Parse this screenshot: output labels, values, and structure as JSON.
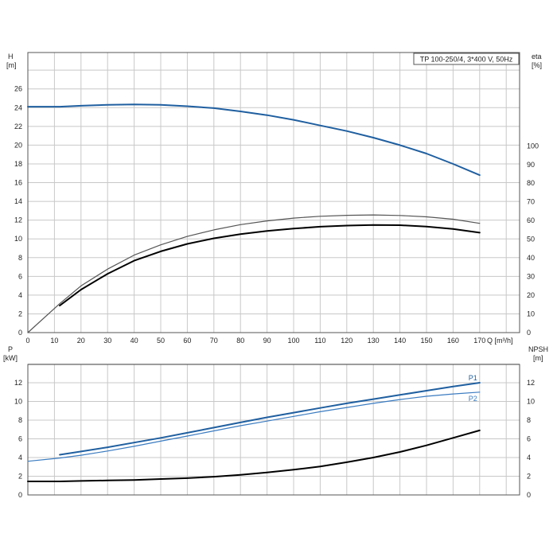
{
  "colors": {
    "blue": "#1f5fa0",
    "light_blue": "#3a7bc0",
    "black": "#000000",
    "grey_curve": "#555555",
    "grid": "#c8c8c8",
    "frame": "#555555"
  },
  "chart_data": [
    {
      "type": "line",
      "title": "TP 100-250/4, 3*400 V, 50Hz",
      "xlabel": "Q [m³/h]",
      "left_axis": {
        "label_line1": "H",
        "label_line2": "[m]",
        "ylim": [
          0,
          28
        ],
        "ticks": [
          0,
          2,
          4,
          6,
          8,
          10,
          12,
          14,
          16,
          18,
          20,
          22,
          24,
          26
        ]
      },
      "right_axis": {
        "label_line1": "eta",
        "label_line2": "[%]",
        "ylim": [
          0,
          100
        ],
        "ticks": [
          0,
          10,
          20,
          30,
          40,
          50,
          60,
          70,
          80,
          90,
          100
        ]
      },
      "x_ticks": [
        0,
        10,
        20,
        30,
        40,
        50,
        60,
        70,
        80,
        90,
        100,
        110,
        120,
        130,
        140,
        150,
        160,
        170
      ],
      "xlim": [
        0,
        185
      ],
      "grid": true,
      "series": [
        {
          "axis": "left",
          "color": "blue",
          "width": 2,
          "x": [
            0,
            12,
            20,
            30,
            40,
            50,
            60,
            70,
            80,
            90,
            100,
            110,
            120,
            130,
            140,
            150,
            160,
            170
          ],
          "y": [
            24.1,
            24.1,
            24.2,
            24.3,
            24.35,
            24.3,
            24.15,
            23.95,
            23.6,
            23.2,
            22.7,
            22.1,
            21.5,
            20.8,
            20.0,
            19.1,
            18.0,
            16.8
          ]
        },
        {
          "axis": "right",
          "color": "grey_curve",
          "width": 1.2,
          "x": [
            0,
            12,
            20,
            30,
            40,
            50,
            60,
            70,
            80,
            90,
            100,
            110,
            120,
            130,
            140,
            150,
            160,
            170
          ],
          "y": [
            0,
            15.5,
            25,
            34,
            41.5,
            47,
            51.5,
            55,
            57.8,
            59.8,
            61.3,
            62.3,
            62.8,
            63,
            62.7,
            62,
            60.7,
            58.5
          ]
        },
        {
          "axis": "right",
          "color": "black",
          "width": 2,
          "x": [
            12,
            20,
            30,
            40,
            50,
            60,
            70,
            80,
            90,
            100,
            110,
            120,
            130,
            140,
            150,
            160,
            170
          ],
          "y": [
            14.5,
            23,
            31.5,
            38.5,
            43.5,
            47.5,
            50.5,
            52.7,
            54.4,
            55.7,
            56.7,
            57.3,
            57.6,
            57.5,
            56.8,
            55.5,
            53.5
          ]
        }
      ]
    },
    {
      "type": "line",
      "xlim": [
        0,
        185
      ],
      "left_axis": {
        "label_line1": "P",
        "label_line2": "[kW]",
        "ylim": [
          0,
          14
        ],
        "ticks": [
          0,
          2,
          4,
          6,
          8,
          10,
          12
        ]
      },
      "right_axis": {
        "label_line1": "NPSH",
        "label_line2": "[m]",
        "ylim": [
          0,
          14
        ],
        "ticks": [
          0,
          2,
          4,
          6,
          8,
          10,
          12
        ]
      },
      "grid": true,
      "series": [
        {
          "name": "P1",
          "axis": "left",
          "color": "blue",
          "width": 2,
          "x": [
            12,
            20,
            30,
            40,
            50,
            60,
            70,
            80,
            90,
            100,
            110,
            120,
            130,
            140,
            150,
            160,
            170
          ],
          "y": [
            4.3,
            4.65,
            5.1,
            5.6,
            6.1,
            6.65,
            7.2,
            7.75,
            8.3,
            8.8,
            9.3,
            9.8,
            10.25,
            10.7,
            11.15,
            11.6,
            12.0
          ]
        },
        {
          "name": "P2",
          "axis": "left",
          "color": "light_blue",
          "width": 1.2,
          "x": [
            0,
            12,
            20,
            30,
            40,
            50,
            60,
            70,
            80,
            90,
            100,
            110,
            120,
            130,
            140,
            150,
            160,
            170
          ],
          "y": [
            3.6,
            3.95,
            4.25,
            4.7,
            5.2,
            5.75,
            6.3,
            6.85,
            7.4,
            7.9,
            8.4,
            8.9,
            9.35,
            9.8,
            10.2,
            10.55,
            10.8,
            11.0
          ]
        },
        {
          "axis": "right",
          "color": "black",
          "width": 2,
          "x": [
            0,
            12,
            20,
            30,
            40,
            50,
            60,
            70,
            80,
            90,
            100,
            110,
            120,
            130,
            140,
            150,
            160,
            170
          ],
          "y": [
            1.45,
            1.45,
            1.5,
            1.55,
            1.6,
            1.7,
            1.8,
            1.95,
            2.15,
            2.4,
            2.7,
            3.05,
            3.5,
            4.0,
            4.6,
            5.3,
            6.1,
            6.9
          ]
        }
      ]
    }
  ]
}
